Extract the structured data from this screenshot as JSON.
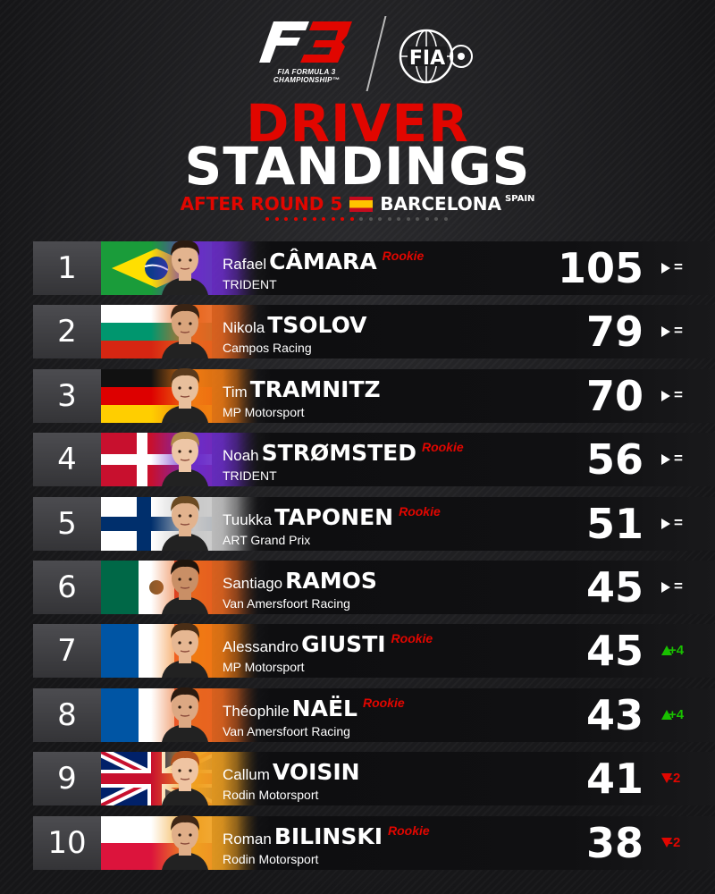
{
  "header": {
    "series_caption_line1": "FIA FORMULA 3",
    "series_caption_line2": "CHAMPIONSHIP™",
    "title_line1": "DRIVER",
    "title_line2": "STANDINGS",
    "round_text": "AFTER ROUND 5",
    "location": "BARCELONA",
    "country": "SPAIN"
  },
  "colors": {
    "accent_red": "#e10600",
    "up_green": "#19c000",
    "down_red": "#e10600"
  },
  "rookie_label": "Rookie",
  "standings": [
    {
      "pos": "1",
      "first": "Rafael",
      "last": "CÂMARA",
      "rookie": true,
      "team": "TRIDENT",
      "points": "105",
      "change": "=",
      "flag": "brazil-flag-icon"
    },
    {
      "pos": "2",
      "first": "Nikola",
      "last": "TSOLOV",
      "rookie": false,
      "team": "Campos Racing",
      "points": "79",
      "change": "=",
      "flag": "bulgaria-flag-icon"
    },
    {
      "pos": "3",
      "first": "Tim",
      "last": "TRAMNITZ",
      "rookie": false,
      "team": "MP Motorsport",
      "points": "70",
      "change": "=",
      "flag": "germany-flag-icon"
    },
    {
      "pos": "4",
      "first": "Noah",
      "last": "STRØMSTED",
      "rookie": true,
      "team": "TRIDENT",
      "points": "56",
      "change": "=",
      "flag": "denmark-flag-icon"
    },
    {
      "pos": "5",
      "first": "Tuukka",
      "last": "TAPONEN",
      "rookie": true,
      "team": "ART Grand Prix",
      "points": "51",
      "change": "=",
      "flag": "finland-flag-icon"
    },
    {
      "pos": "6",
      "first": "Santiago",
      "last": "RAMOS",
      "rookie": false,
      "team": "Van Amersfoort Racing",
      "points": "45",
      "change": "=",
      "flag": "mexico-flag-icon"
    },
    {
      "pos": "7",
      "first": "Alessandro",
      "last": "GIUSTI",
      "rookie": true,
      "team": "MP Motorsport",
      "points": "45",
      "change": "+4",
      "flag": "france-flag-icon"
    },
    {
      "pos": "8",
      "first": "Théophile",
      "last": "NAËL",
      "rookie": true,
      "team": "Van Amersfoort Racing",
      "points": "43",
      "change": "+4",
      "flag": "france-flag-icon"
    },
    {
      "pos": "9",
      "first": "Callum",
      "last": "VOISIN",
      "rookie": false,
      "team": "Rodin Motorsport",
      "points": "41",
      "change": "-2",
      "flag": "uk-flag-icon"
    },
    {
      "pos": "10",
      "first": "Roman",
      "last": "BILINSKI",
      "rookie": true,
      "team": "Rodin Motorsport",
      "points": "38",
      "change": "-2",
      "flag": "poland-flag-icon"
    }
  ]
}
